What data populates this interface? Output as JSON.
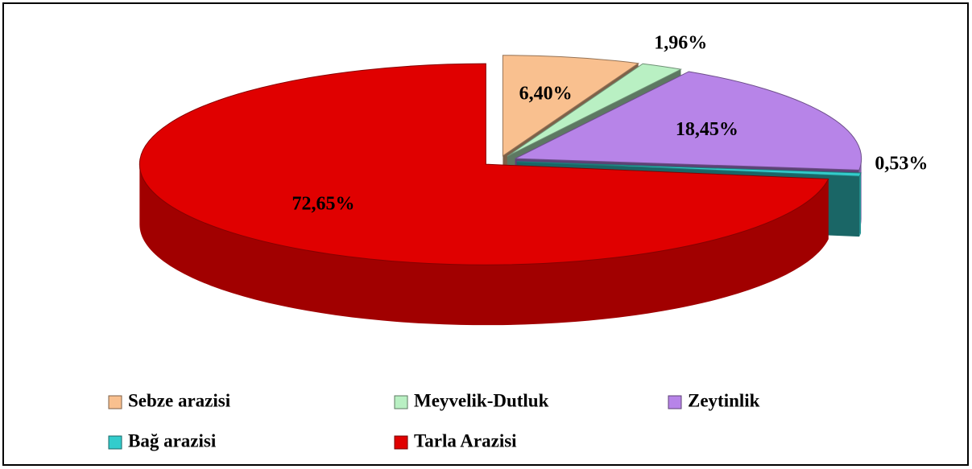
{
  "chart_data": {
    "type": "pie3d",
    "categories": [
      "Sebze arazisi",
      "Meyvelik-Dutluk",
      "Zeytinlik",
      "Bağ arazisi",
      "Tarla Arazisi"
    ],
    "values": [
      6.4,
      1.96,
      18.45,
      0.53,
      72.65
    ],
    "value_labels": [
      "6,40%",
      "1,96%",
      "18,45%",
      "0,53%",
      "72,65%"
    ],
    "colors": [
      "#f9c08f",
      "#b9f0c3",
      "#b784e8",
      "#33cccc",
      "#e00000"
    ],
    "legend": "bottom"
  }
}
